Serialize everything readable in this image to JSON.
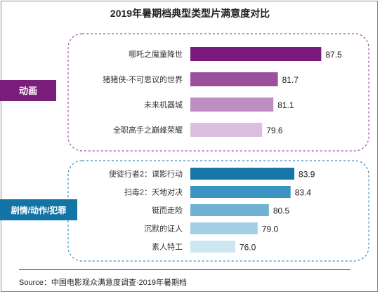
{
  "title": "2019年暑期档典型类型片满意度对比",
  "source": "Source：中国电影观众满意度调查·2019年暑期档",
  "chart_data": {
    "type": "bar",
    "orientation": "horizontal",
    "title": "2019年暑期档典型类型片满意度对比",
    "xlim": [
      70,
      90
    ],
    "groups": [
      {
        "name": "动画",
        "label_color": "#7a1d7b",
        "border_color": "#a24fa6",
        "categories": [
          "哪吒之魔童降世",
          "猪猪侠·不可思议的世界",
          "未来机器城",
          "全职高手之巅峰荣耀"
        ],
        "values": [
          87.5,
          81.7,
          81.1,
          79.6
        ],
        "colors": [
          "#7a1a7c",
          "#9a509c",
          "#bf8ec3",
          "#dcbfdf"
        ]
      },
      {
        "name": "剧情/动作/犯罪",
        "label_color": "#1474a6",
        "border_color": "#3a8fbe",
        "categories": [
          "使徒行者2：谍影行动",
          "扫毒2：天地对决",
          "铤而走险",
          "沉默的证人",
          "素人特工"
        ],
        "values": [
          83.9,
          83.4,
          80.5,
          79.0,
          76.0
        ],
        "colors": [
          "#1776a8",
          "#3b93c2",
          "#6fb1d3",
          "#a3cfe4",
          "#cde6f1"
        ]
      }
    ]
  }
}
